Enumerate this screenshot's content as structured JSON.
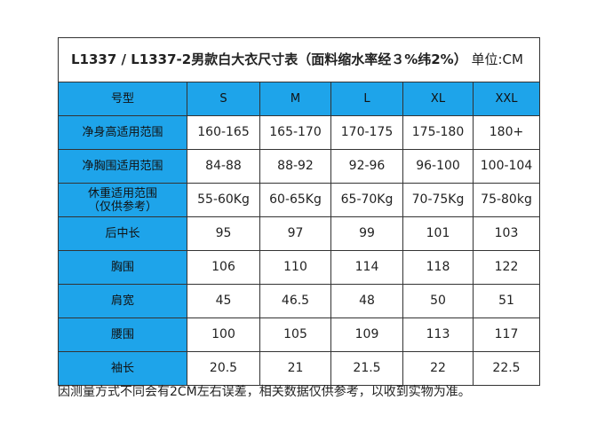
{
  "table": {
    "title": "L1337 / L1337-2男款白大衣尺寸表（面料缩水率经３%纬2%）",
    "unit": "单位:CM",
    "rows": [
      [
        "号型",
        "S",
        "M",
        "L",
        "XL",
        "XXL"
      ],
      [
        "净身高适用范围",
        "160-165",
        "165-170",
        "170-175",
        "175-180",
        "180+"
      ],
      [
        "净胸围适用范围",
        "84-88",
        "88-92",
        "92-96",
        "96-100",
        "100-104"
      ],
      [
        "休重适用范围\n（仅供参考）",
        "55-60Kg",
        "60-65Kg",
        "65-70Kg",
        "70-75Kg",
        "75-80kg"
      ],
      [
        "后中长",
        "95",
        "97",
        "99",
        "101",
        "103"
      ],
      [
        "胸围",
        "106",
        "110",
        "114",
        "118",
        "122"
      ],
      [
        "肩宽",
        "45",
        "46.5",
        "48",
        "50",
        "51"
      ],
      [
        "腰围",
        "100",
        "105",
        "109",
        "113",
        "117"
      ],
      [
        "袖长",
        "20.5",
        "21",
        "21.5",
        "22",
        "22.5"
      ]
    ],
    "note": "因测量方式不同会有2CM左右误差，相关数据仅供参考，以收到实物为准。"
  }
}
